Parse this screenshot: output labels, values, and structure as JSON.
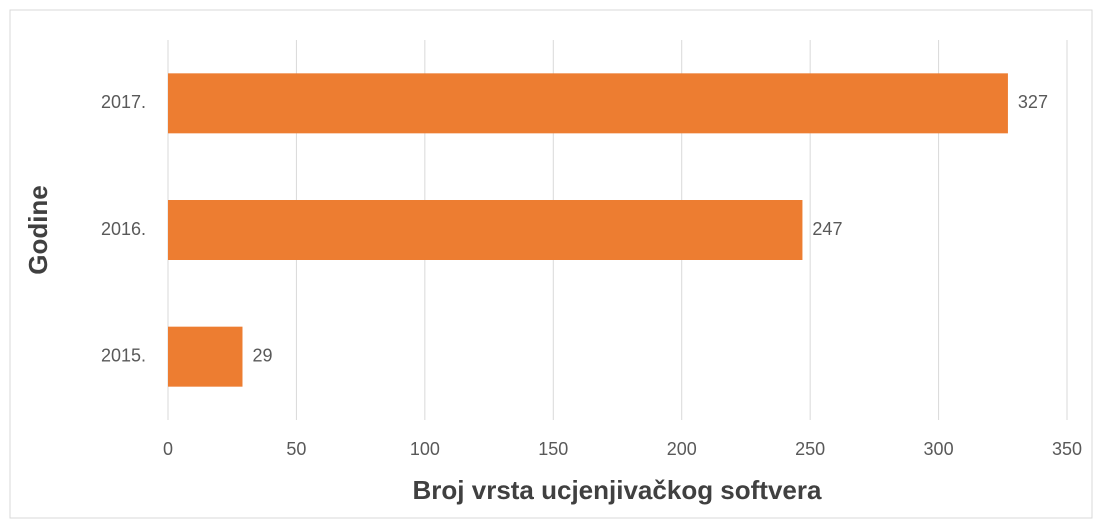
{
  "chart_data": {
    "type": "barh",
    "categories": [
      "2015.",
      "2016.",
      "2017."
    ],
    "values": [
      29,
      247,
      327
    ],
    "color": "#ed7d31",
    "xlabel": "Broj vrsta ucjenjivačkog softvera",
    "ylabel": "Godine",
    "xlim": [
      0,
      350
    ],
    "xticks": [
      0,
      50,
      100,
      150,
      200,
      250,
      300,
      350
    ],
    "grid": true
  }
}
